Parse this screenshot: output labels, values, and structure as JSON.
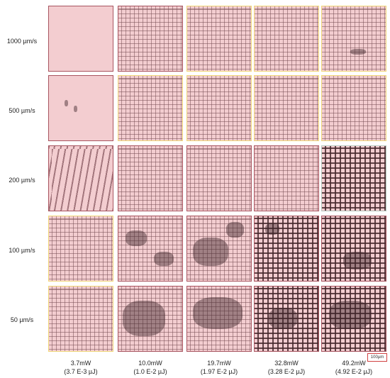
{
  "figure": {
    "row_labels": [
      "1000 µm/s",
      "500 µm/s",
      "200 µm/s",
      "100 µm/s",
      "50 µm/s"
    ],
    "columns": [
      {
        "power": "3.7mW",
        "energy": "(3.7 E-3 µJ)"
      },
      {
        "power": "10.0mW",
        "energy": "(1.0 E-2 µJ)"
      },
      {
        "power": "19.7mW",
        "energy": "(1.97 E-2 µJ)"
      },
      {
        "power": "32.8mW",
        "energy": "(3.28 E-2 µJ)"
      },
      {
        "power": "49.2mW",
        "energy": "(4.92 E-2 µJ)"
      }
    ],
    "scale_bar": "100µm"
  }
}
